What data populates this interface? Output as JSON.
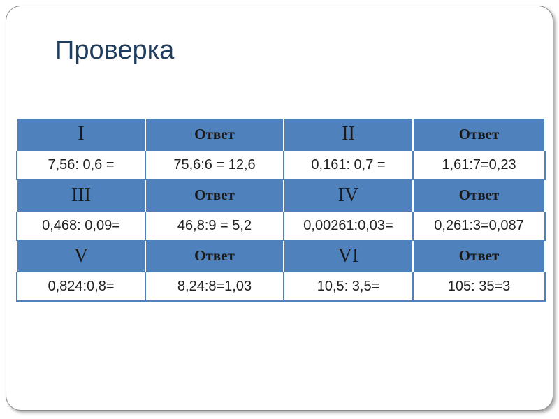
{
  "header": {
    "title": "Проверка"
  },
  "table": {
    "rows": [
      [
        "I",
        "Ответ",
        "II",
        "Ответ"
      ],
      [
        "7,56: 0,6 =",
        "75,6:6 = 12,6",
        "0,161: 0,7 =",
        "1,61:7=0,23"
      ],
      [
        "III",
        "Ответ",
        "IV",
        "Ответ"
      ],
      [
        "0,468: 0,09=",
        "46,8:9 = 5,2",
        "0,00261:0,03=",
        "0,261:3=0,087"
      ],
      [
        "V",
        "Ответ",
        "VI",
        "Ответ"
      ],
      [
        "0,824:0,8=",
        "8,24:8=1,03",
        "10,5: 3,5=",
        "105: 35=3"
      ]
    ]
  }
}
